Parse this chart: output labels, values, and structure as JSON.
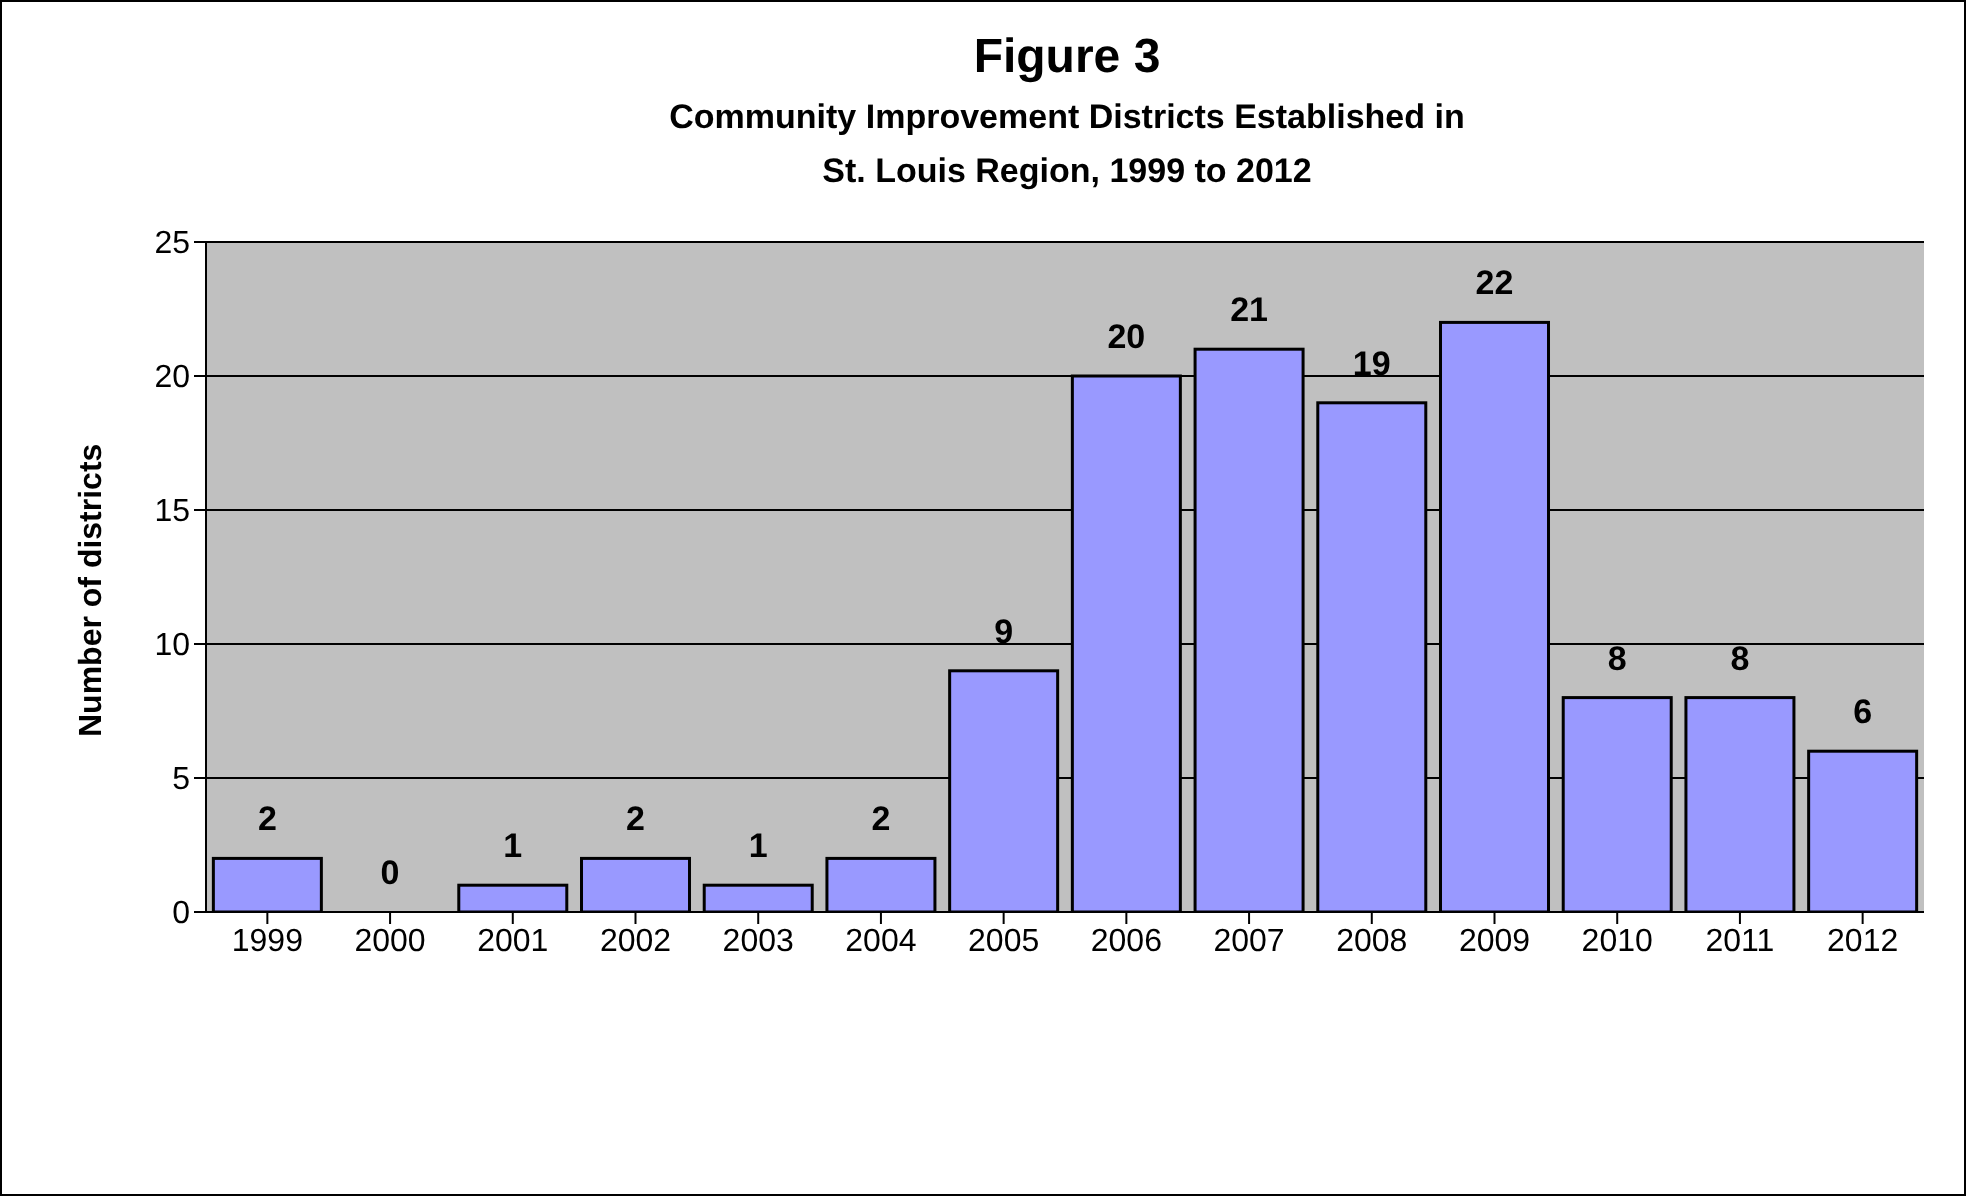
{
  "chart_data": {
    "type": "bar",
    "title": "Figure 3",
    "subtitle": "Community Improvement Districts Established in\nSt. Louis Region, 1999 to 2012",
    "ylabel": "Number of districts",
    "categories": [
      "1999",
      "2000",
      "2001",
      "2002",
      "2003",
      "2004",
      "2005",
      "2006",
      "2007",
      "2008",
      "2009",
      "2010",
      "2011",
      "2012"
    ],
    "values": [
      2,
      0,
      1,
      2,
      1,
      2,
      9,
      20,
      21,
      19,
      22,
      8,
      8,
      6
    ],
    "color": "#9999ff",
    "ylim": [
      0,
      25
    ],
    "yticks": [
      0,
      5,
      10,
      15,
      20,
      25
    ],
    "grid": "y",
    "data_labels": true
  }
}
